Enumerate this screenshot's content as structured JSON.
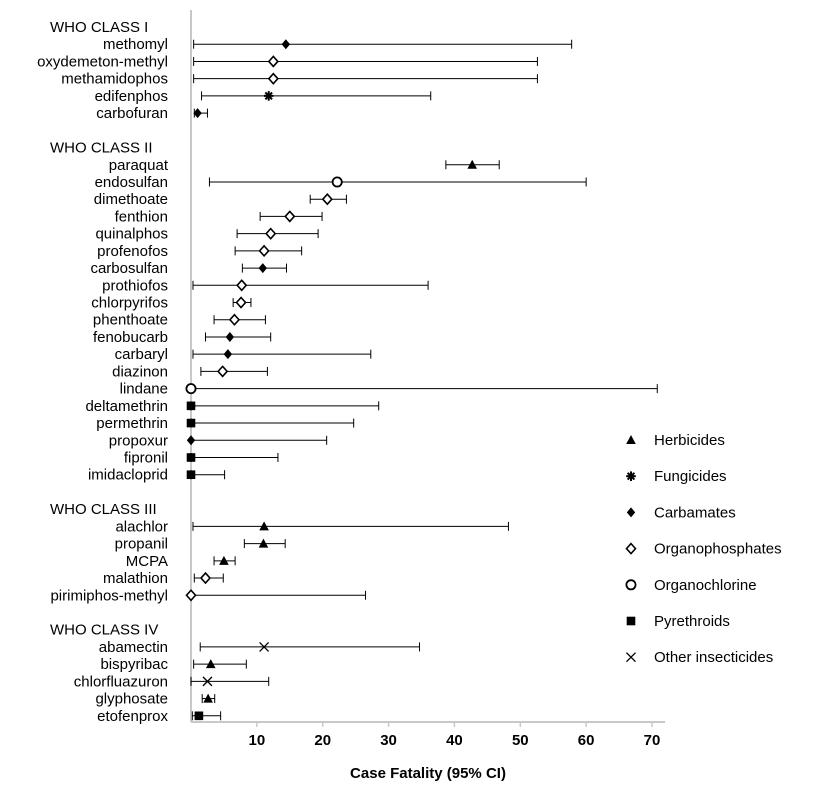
{
  "chart_data": {
    "type": "forest",
    "xlabel": "Case Fatality (95% CI)",
    "xlim": [
      0,
      70
    ],
    "xticks": [
      10,
      20,
      30,
      40,
      50,
      60,
      70
    ],
    "legend_position": "right",
    "legend": [
      {
        "label": "Herbicides",
        "marker": "triangle"
      },
      {
        "label": "Fungicides",
        "marker": "asterisk"
      },
      {
        "label": "Carbamates",
        "marker": "filled-diamond"
      },
      {
        "label": "Organophosphates",
        "marker": "open-diamond"
      },
      {
        "label": "Organochlorine",
        "marker": "open-circle"
      },
      {
        "label": "Pyrethroids",
        "marker": "filled-square"
      },
      {
        "label": "Other insecticides",
        "marker": "cross"
      }
    ],
    "groups": [
      {
        "label": "WHO CLASS I",
        "rows": [
          {
            "label": "methomyl",
            "est": 14.4,
            "lo": 0.4,
            "hi": 57.8,
            "marker": "filled-diamond"
          },
          {
            "label": "oxydemeton-methyl",
            "est": 12.5,
            "lo": 0.4,
            "hi": 52.6,
            "marker": "open-diamond"
          },
          {
            "label": "methamidophos",
            "est": 12.5,
            "lo": 0.4,
            "hi": 52.6,
            "marker": "open-diamond"
          },
          {
            "label": "edifenphos",
            "est": 11.8,
            "lo": 1.6,
            "hi": 36.4,
            "marker": "asterisk"
          },
          {
            "label": "carbofuran",
            "est": 1.0,
            "lo": 0.5,
            "hi": 2.5,
            "marker": "filled-diamond"
          }
        ]
      },
      {
        "label": "WHO CLASS II",
        "rows": [
          {
            "label": "paraquat",
            "est": 42.7,
            "lo": 38.7,
            "hi": 46.8,
            "marker": "triangle"
          },
          {
            "label": "endosulfan",
            "est": 22.2,
            "lo": 2.8,
            "hi": 60.0,
            "marker": "open-circle"
          },
          {
            "label": "dimethoate",
            "est": 20.7,
            "lo": 18.1,
            "hi": 23.6,
            "marker": "open-diamond"
          },
          {
            "label": "fenthion",
            "est": 15.0,
            "lo": 10.5,
            "hi": 19.9,
            "marker": "open-diamond"
          },
          {
            "label": "quinalphos",
            "est": 12.1,
            "lo": 7.0,
            "hi": 19.3,
            "marker": "open-diamond"
          },
          {
            "label": "profenofos",
            "est": 11.1,
            "lo": 6.7,
            "hi": 16.8,
            "marker": "open-diamond"
          },
          {
            "label": "carbosulfan",
            "est": 10.9,
            "lo": 7.8,
            "hi": 14.5,
            "marker": "filled-diamond"
          },
          {
            "label": "prothiofos",
            "est": 7.7,
            "lo": 0.3,
            "hi": 36.0,
            "marker": "open-diamond"
          },
          {
            "label": "chlorpyrifos",
            "est": 7.6,
            "lo": 6.4,
            "hi": 9.1,
            "marker": "open-diamond"
          },
          {
            "label": "phenthoate",
            "est": 6.6,
            "lo": 3.5,
            "hi": 11.3,
            "marker": "open-diamond"
          },
          {
            "label": "fenobucarb",
            "est": 5.9,
            "lo": 2.2,
            "hi": 12.1,
            "marker": "filled-diamond"
          },
          {
            "label": "carbaryl",
            "est": 5.6,
            "lo": 0.3,
            "hi": 27.3,
            "marker": "filled-diamond"
          },
          {
            "label": "diazinon",
            "est": 4.8,
            "lo": 1.5,
            "hi": 11.6,
            "marker": "open-diamond"
          },
          {
            "label": "lindane",
            "est": 0.0,
            "lo": 0.0,
            "hi": 70.8,
            "marker": "open-circle"
          },
          {
            "label": "deltamethrin",
            "est": 0.0,
            "lo": 0.0,
            "hi": 28.5,
            "marker": "filled-square"
          },
          {
            "label": "permethrin",
            "est": 0.0,
            "lo": 0.0,
            "hi": 24.7,
            "marker": "filled-square"
          },
          {
            "label": "propoxur",
            "est": 0.0,
            "lo": 0.0,
            "hi": 20.6,
            "marker": "filled-diamond"
          },
          {
            "label": "fipronil",
            "est": 0.0,
            "lo": 0.0,
            "hi": 13.2,
            "marker": "filled-square"
          },
          {
            "label": "imidacloprid",
            "est": 0.0,
            "lo": 0.0,
            "hi": 5.1,
            "marker": "filled-square"
          }
        ]
      },
      {
        "label": "WHO CLASS III",
        "rows": [
          {
            "label": "alachlor",
            "est": 11.1,
            "lo": 0.3,
            "hi": 48.2,
            "marker": "triangle"
          },
          {
            "label": "propanil",
            "est": 11.0,
            "lo": 8.1,
            "hi": 14.3,
            "marker": "triangle"
          },
          {
            "label": "MCPA",
            "est": 5.0,
            "lo": 3.5,
            "hi": 6.7,
            "marker": "triangle"
          },
          {
            "label": "malathion",
            "est": 2.2,
            "lo": 0.5,
            "hi": 4.9,
            "marker": "open-diamond"
          },
          {
            "label": "pirimiphos-methyl",
            "est": 0.0,
            "lo": 0.0,
            "hi": 26.5,
            "marker": "open-diamond"
          }
        ]
      },
      {
        "label": "WHO CLASS IV",
        "rows": [
          {
            "label": "abamectin",
            "est": 11.1,
            "lo": 1.4,
            "hi": 34.7,
            "marker": "cross"
          },
          {
            "label": "bispyribac",
            "est": 3.0,
            "lo": 0.4,
            "hi": 8.4,
            "marker": "triangle"
          },
          {
            "label": "chlorfluazuron",
            "est": 2.5,
            "lo": 0.0,
            "hi": 11.8,
            "marker": "cross"
          },
          {
            "label": "glyphosate",
            "est": 2.6,
            "lo": 1.7,
            "hi": 3.6,
            "marker": "triangle"
          },
          {
            "label": "etofenprox",
            "est": 1.2,
            "lo": 0.2,
            "hi": 4.5,
            "marker": "filled-square"
          }
        ]
      }
    ]
  }
}
